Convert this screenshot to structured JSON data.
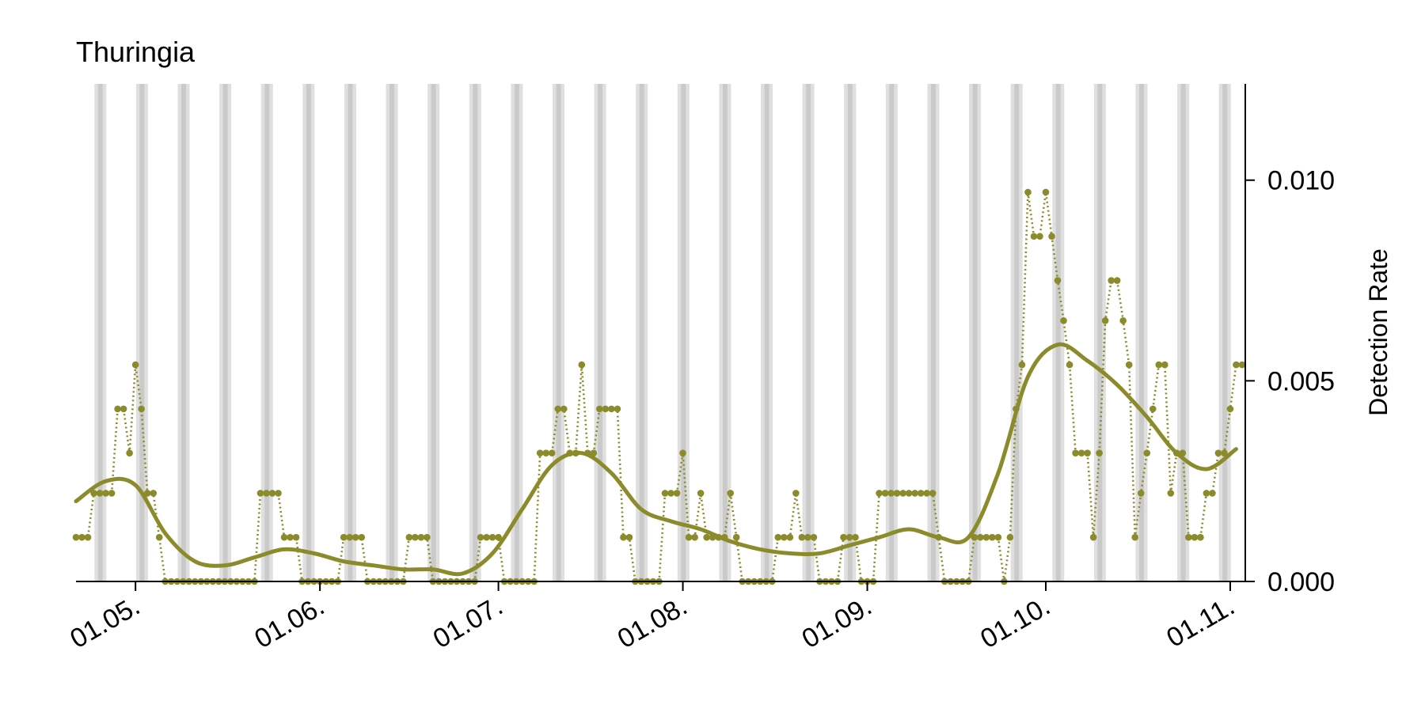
{
  "chart_data": {
    "type": "line",
    "title": "Thuringia",
    "y_label": "Detection Rate",
    "x": [
      "21.04.",
      "22.04.",
      "23.04.",
      "24.04.",
      "25.04.",
      "26.04.",
      "27.04.",
      "28.04.",
      "29.04.",
      "30.04.",
      "01.05.",
      "02.05.",
      "03.05.",
      "04.05.",
      "05.05.",
      "06.05.",
      "07.05.",
      "08.05.",
      "09.05.",
      "10.05.",
      "11.05.",
      "12.05.",
      "13.05.",
      "14.05.",
      "15.05.",
      "16.05.",
      "17.05.",
      "18.05.",
      "19.05.",
      "20.05.",
      "21.05.",
      "22.05.",
      "23.05.",
      "24.05.",
      "25.05.",
      "26.05.",
      "27.05.",
      "28.05.",
      "29.05.",
      "30.05.",
      "31.05.",
      "01.06.",
      "02.06.",
      "03.06.",
      "04.06.",
      "05.06.",
      "06.06.",
      "07.06.",
      "08.06.",
      "09.06.",
      "10.06.",
      "11.06.",
      "12.06.",
      "13.06.",
      "14.06.",
      "15.06.",
      "16.06.",
      "17.06.",
      "18.06.",
      "19.06.",
      "20.06.",
      "21.06.",
      "22.06.",
      "23.06.",
      "24.06.",
      "25.06.",
      "26.06.",
      "27.06.",
      "28.06.",
      "29.06.",
      "30.06.",
      "01.07.",
      "02.07.",
      "03.07.",
      "04.07.",
      "05.07.",
      "06.07.",
      "07.07.",
      "08.07.",
      "09.07.",
      "10.07.",
      "11.07.",
      "12.07.",
      "13.07.",
      "14.07.",
      "15.07.",
      "16.07.",
      "17.07.",
      "18.07.",
      "19.07.",
      "20.07.",
      "21.07.",
      "22.07.",
      "23.07.",
      "24.07.",
      "25.07.",
      "26.07.",
      "27.07.",
      "28.07.",
      "29.07.",
      "30.07.",
      "31.07.",
      "01.08.",
      "02.08.",
      "03.08.",
      "04.08.",
      "05.08.",
      "06.08.",
      "07.08.",
      "08.08.",
      "09.08.",
      "10.08.",
      "11.08.",
      "12.08.",
      "13.08.",
      "14.08.",
      "15.08.",
      "16.08.",
      "17.08.",
      "18.08.",
      "19.08.",
      "20.08.",
      "21.08.",
      "22.08.",
      "23.08.",
      "24.08.",
      "25.08.",
      "26.08.",
      "27.08.",
      "28.08.",
      "29.08.",
      "30.08.",
      "31.08.",
      "01.09.",
      "02.09.",
      "03.09.",
      "04.09.",
      "05.09.",
      "06.09.",
      "07.09.",
      "08.09.",
      "09.09.",
      "10.09.",
      "11.09.",
      "12.09.",
      "13.09.",
      "14.09.",
      "15.09.",
      "16.09.",
      "17.09.",
      "18.09.",
      "19.09.",
      "20.09.",
      "21.09.",
      "22.09.",
      "23.09.",
      "24.09.",
      "25.09.",
      "26.09.",
      "27.09.",
      "28.09.",
      "29.09.",
      "30.09.",
      "01.10.",
      "02.10.",
      "03.10.",
      "04.10.",
      "05.10.",
      "06.10.",
      "07.10.",
      "08.10.",
      "09.10.",
      "10.10.",
      "11.10.",
      "12.10.",
      "13.10.",
      "14.10.",
      "15.10.",
      "16.10.",
      "17.10.",
      "18.10.",
      "19.10.",
      "20.10.",
      "21.10.",
      "22.10.",
      "23.10.",
      "24.10.",
      "25.10.",
      "26.10.",
      "27.10.",
      "28.10.",
      "29.10.",
      "30.10.",
      "31.10.",
      "01.11.",
      "02.11.",
      "03.11."
    ],
    "xlim": [
      "21.04.",
      "03.11."
    ],
    "xticks": [
      "01.05.",
      "01.06.",
      "01.07.",
      "01.08.",
      "01.09.",
      "01.10.",
      "01.11."
    ],
    "ylim": [
      0,
      0.0124
    ],
    "yticks": [
      {
        "value": 0,
        "label": "0.000"
      },
      {
        "value": 0.005,
        "label": "0.005"
      },
      {
        "value": 0.01,
        "label": "0.010"
      }
    ],
    "y_axis_side": "right",
    "weekend_bands": true,
    "series": [
      {
        "color": "#8b8b2b",
        "linestyle": "dotted",
        "marker": true,
        "values": [
          0.0011,
          0.0011,
          0.0011,
          0.0022,
          0.0022,
          0.0022,
          0.0022,
          0.0043,
          0.0043,
          0.0032,
          0.0054,
          0.0043,
          0.0022,
          0.0022,
          0.0011,
          0,
          0,
          0,
          0,
          0,
          0,
          0,
          0,
          0,
          0,
          0,
          0,
          0,
          0,
          0,
          0,
          0.0022,
          0.0022,
          0.0022,
          0.0022,
          0.0011,
          0.0011,
          0.0011,
          0,
          0,
          0,
          0,
          0,
          0,
          0,
          0.0011,
          0.0011,
          0.0011,
          0.0011,
          0,
          0,
          0,
          0,
          0,
          0,
          0,
          0.0011,
          0.0011,
          0.0011,
          0.0011,
          0,
          0,
          0,
          0,
          0,
          0,
          0,
          0,
          0.0011,
          0.0011,
          0.0011,
          0.0011,
          0,
          0,
          0,
          0,
          0,
          0,
          0.0032,
          0.0032,
          0.0032,
          0.0043,
          0.0043,
          0.0032,
          0.0032,
          0.0054,
          0.0032,
          0.0032,
          0.0043,
          0.0043,
          0.0043,
          0.0043,
          0.0011,
          0.0011,
          0,
          0,
          0,
          0,
          0,
          0.0022,
          0.0022,
          0.0022,
          0.0032,
          0.0011,
          0.0011,
          0.0022,
          0.0011,
          0.0011,
          0.0011,
          0.0011,
          0.0022,
          0.0011,
          0,
          0,
          0,
          0,
          0,
          0,
          0.0011,
          0.0011,
          0.0011,
          0.0022,
          0.0011,
          0.0011,
          0.0011,
          0,
          0,
          0,
          0,
          0.0011,
          0.0011,
          0.0011,
          0,
          0,
          0,
          0.0022,
          0.0022,
          0.0022,
          0.0022,
          0.0022,
          0.0022,
          0.0022,
          0.0022,
          0.0022,
          0.0022,
          0.0011,
          0,
          0,
          0,
          0,
          0,
          0.0011,
          0.0011,
          0.0011,
          0.0011,
          0.0011,
          0,
          0.0011,
          0.0043,
          0.0054,
          0.0097,
          0.0086,
          0.0086,
          0.0097,
          0.0086,
          0.0075,
          0.0065,
          0.0054,
          0.0032,
          0.0032,
          0.0032,
          0.0011,
          0.0032,
          0.0065,
          0.0075,
          0.0075,
          0.0065,
          0.0054,
          0.0011,
          0.0022,
          0.0032,
          0.0043,
          0.0054,
          0.0054,
          0.0022,
          0.0032,
          0.0032,
          0.0011,
          0.0011,
          0.0011,
          0.0022,
          0.0022,
          0.0032,
          0.0032,
          0.0043,
          0.0054,
          0.0054
        ]
      },
      {
        "color": "#8b8b2b",
        "linestyle": "solid",
        "marker": false,
        "x": [
          "21.04.",
          "26.04.",
          "01.05.",
          "06.05.",
          "11.05.",
          "16.05.",
          "21.05.",
          "26.05.",
          "31.05.",
          "05.06.",
          "10.06.",
          "15.06.",
          "20.06.",
          "25.06.",
          "30.06.",
          "05.07.",
          "10.07.",
          "15.07.",
          "20.07.",
          "25.07.",
          "30.07.",
          "04.08.",
          "09.08.",
          "14.08.",
          "19.08.",
          "24.08.",
          "29.08.",
          "03.09.",
          "08.09.",
          "13.09.",
          "18.09.",
          "23.09.",
          "28.09.",
          "03.10.",
          "08.10.",
          "13.10.",
          "18.10.",
          "23.10.",
          "28.10.",
          "02.11."
        ],
        "values": [
          0.002,
          0.0025,
          0.0024,
          0.0012,
          0.0005,
          0.0004,
          0.0006,
          0.0008,
          0.0007,
          0.0005,
          0.0004,
          0.0003,
          0.0003,
          0.0002,
          0.0007,
          0.0018,
          0.0029,
          0.0032,
          0.0027,
          0.0018,
          0.0015,
          0.0013,
          0.001,
          0.0008,
          0.0007,
          0.0007,
          0.0009,
          0.0011,
          0.0013,
          0.0011,
          0.0011,
          0.0027,
          0.0051,
          0.0059,
          0.0055,
          0.0049,
          0.0041,
          0.0032,
          0.0028,
          0.0033
        ]
      }
    ]
  }
}
